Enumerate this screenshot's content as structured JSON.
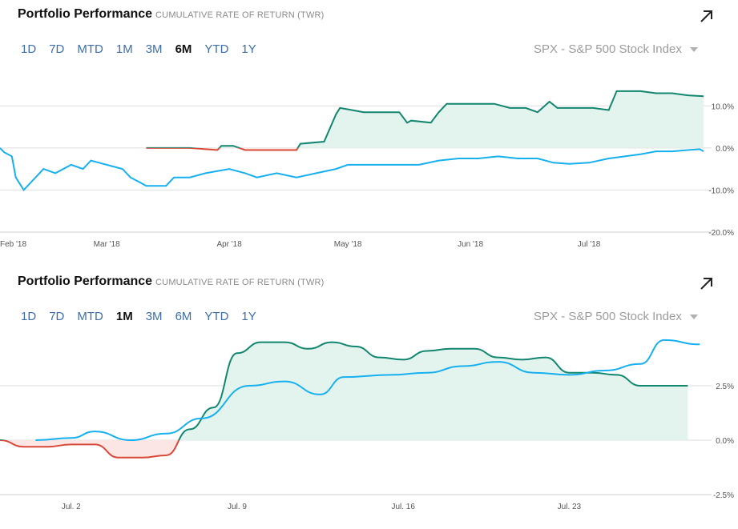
{
  "colors": {
    "portfolio_up": "#12866e",
    "portfolio_down": "#d9493a",
    "benchmark": "#17b0ef",
    "fill_up": "#e3f4ee",
    "fill_down": "#fce6e4",
    "grid": "#dedede",
    "link": "#3d6ea8"
  },
  "panels": [
    {
      "title": "Portfolio Performance",
      "subtitle": "CUMULATIVE RATE OF RETURN (TWR)",
      "expand_icon": "arrow-up-right-icon",
      "ranges": [
        "1D",
        "7D",
        "MTD",
        "1M",
        "3M",
        "6M",
        "YTD",
        "1Y"
      ],
      "active_range": "6M",
      "benchmark": "SPX - S&P 500 Stock Index",
      "chart_data": {
        "type": "line",
        "title": "Portfolio Performance",
        "subtitle": "CUMULATIVE RATE OF RETURN (TWR)",
        "x_ticks": [
          {
            "x": 0,
            "label": "Feb '18"
          },
          {
            "x": 27,
            "label": "Mar '18"
          },
          {
            "x": 58,
            "label": "Apr '18"
          },
          {
            "x": 88,
            "label": "May '18"
          },
          {
            "x": 119,
            "label": "Jun '18"
          },
          {
            "x": 149,
            "label": "Jul '18"
          }
        ],
        "y_ticks": [
          10,
          0,
          -10,
          -20
        ],
        "y_tick_labels": [
          "10.0%",
          "0.0%",
          "-10.0%",
          "-20.0%"
        ],
        "xlim": [
          0,
          180
        ],
        "ylim": [
          -20,
          15
        ],
        "grid": true,
        "series": [
          {
            "values": [
              [
                37,
                0
              ],
              [
                42,
                0
              ],
              [
                48,
                0
              ],
              [
                52,
                -0.3
              ],
              [
                55,
                -0.5
              ],
              [
                56,
                0.5
              ],
              [
                59,
                0.5
              ],
              [
                62,
                -0.5
              ],
              [
                68,
                -0.5
              ],
              [
                75,
                -0.5
              ],
              [
                76,
                1
              ],
              [
                82,
                1.5
              ],
              [
                85,
                8
              ],
              [
                86,
                9.5
              ],
              [
                89,
                9
              ],
              [
                92,
                8.5
              ],
              [
                101,
                8.5
              ],
              [
                103,
                6
              ],
              [
                104,
                6.5
              ],
              [
                109,
                6
              ],
              [
                111,
                8.5
              ],
              [
                113,
                10.5
              ],
              [
                120,
                10.5
              ],
              [
                125,
                10.5
              ],
              [
                129,
                9.5
              ],
              [
                133,
                9.5
              ],
              [
                136,
                8.5
              ],
              [
                139,
                11
              ],
              [
                141,
                9.5
              ],
              [
                150,
                9.5
              ],
              [
                154,
                9
              ],
              [
                156,
                13.5
              ],
              [
                162,
                13.5
              ],
              [
                166,
                13
              ],
              [
                170,
                13
              ],
              [
                174,
                12.5
              ],
              [
                178,
                12.3
              ]
            ],
            "color_above_zero": "#12866e",
            "color_below_zero": "#d9493a",
            "filled": true
          },
          {
            "values": [
              [
                0,
                0
              ],
              [
                1,
                -1
              ],
              [
                3,
                -2
              ],
              [
                4,
                -7
              ],
              [
                6,
                -10
              ],
              [
                9,
                -7
              ],
              [
                11,
                -5
              ],
              [
                14,
                -6
              ],
              [
                18,
                -4
              ],
              [
                21,
                -5
              ],
              [
                23,
                -3
              ],
              [
                27,
                -4
              ],
              [
                31,
                -5
              ],
              [
                33,
                -7
              ],
              [
                35,
                -8
              ],
              [
                37,
                -9
              ],
              [
                39,
                -9
              ],
              [
                42,
                -9
              ],
              [
                44,
                -7
              ],
              [
                48,
                -7
              ],
              [
                52,
                -6
              ],
              [
                58,
                -5
              ],
              [
                62,
                -6
              ],
              [
                65,
                -7
              ],
              [
                70,
                -6
              ],
              [
                75,
                -7
              ],
              [
                80,
                -6
              ],
              [
                85,
                -5
              ],
              [
                88,
                -4
              ],
              [
                92,
                -4
              ],
              [
                97,
                -4
              ],
              [
                101,
                -4
              ],
              [
                106,
                -4
              ],
              [
                111,
                -3
              ],
              [
                116,
                -2.5
              ],
              [
                121,
                -2.5
              ],
              [
                126,
                -2
              ],
              [
                131,
                -2.5
              ],
              [
                136,
                -2.5
              ],
              [
                140,
                -3.5
              ],
              [
                144,
                -3.8
              ],
              [
                149,
                -3.5
              ],
              [
                154,
                -2.5
              ],
              [
                158,
                -2
              ],
              [
                162,
                -1.5
              ],
              [
                166,
                -0.8
              ],
              [
                170,
                -0.8
              ],
              [
                174,
                -0.5
              ],
              [
                177,
                -0.3
              ],
              [
                178,
                -0.8
              ]
            ],
            "color": "#17b0ef",
            "filled": false
          }
        ]
      }
    },
    {
      "title": "Portfolio Performance",
      "subtitle": "CUMULATIVE RATE OF RETURN (TWR)",
      "expand_icon": "arrow-up-right-icon",
      "ranges": [
        "1D",
        "7D",
        "MTD",
        "1M",
        "3M",
        "6M",
        "YTD",
        "1Y"
      ],
      "active_range": "1M",
      "benchmark": "SPX - S&P 500 Stock Index",
      "chart_data": {
        "type": "line",
        "x_ticks": [
          {
            "x": 2,
            "label": "Jul. 2"
          },
          {
            "x": 9,
            "label": "Jul. 9"
          },
          {
            "x": 16,
            "label": "Jul. 16"
          },
          {
            "x": 23,
            "label": "Jul. 23"
          }
        ],
        "y_ticks": [
          2.5,
          0,
          -2.5
        ],
        "y_tick_labels": [
          "2.5%",
          "0.0%",
          "-2.5%"
        ],
        "xlim": [
          -1,
          29
        ],
        "ylim": [
          -2.5,
          5
        ],
        "grid": true,
        "series": [
          {
            "values": [
              [
                -1,
                0
              ],
              [
                0,
                -0.3
              ],
              [
                1,
                -0.3
              ],
              [
                2,
                -0.2
              ],
              [
                3,
                -0.2
              ],
              [
                4,
                -0.8
              ],
              [
                5,
                -0.8
              ],
              [
                6,
                -0.7
              ],
              [
                7,
                0.5
              ],
              [
                8,
                1.5
              ],
              [
                9,
                4
              ],
              [
                10,
                4.5
              ],
              [
                11,
                4.5
              ],
              [
                12,
                4.2
              ],
              [
                13,
                4.5
              ],
              [
                14,
                4.3
              ],
              [
                15,
                3.8
              ],
              [
                16,
                3.7
              ],
              [
                17,
                4.1
              ],
              [
                18,
                4.2
              ],
              [
                19,
                4.2
              ],
              [
                20,
                3.8
              ],
              [
                21,
                3.7
              ],
              [
                22,
                3.8
              ],
              [
                23,
                3.1
              ],
              [
                24,
                3.1
              ],
              [
                25,
                3.0
              ],
              [
                26,
                2.5
              ],
              [
                27,
                2.5
              ],
              [
                28,
                2.5
              ]
            ],
            "color_above_zero": "#12866e",
            "color_below_zero": "#d9493a",
            "filled": true
          },
          {
            "values": [
              [
                0.5,
                0
              ],
              [
                2,
                0.1
              ],
              [
                3,
                0.4
              ],
              [
                4.5,
                0
              ],
              [
                6,
                0.3
              ],
              [
                7.5,
                1
              ],
              [
                9.5,
                2.5
              ],
              [
                11,
                2.7
              ],
              [
                12.5,
                2.1
              ],
              [
                13.5,
                2.9
              ],
              [
                15.5,
                3
              ],
              [
                17,
                3.1
              ],
              [
                18.5,
                3.4
              ],
              [
                20,
                3.6
              ],
              [
                21.5,
                3.1
              ],
              [
                23,
                3.0
              ],
              [
                24.5,
                3.2
              ],
              [
                26,
                3.5
              ],
              [
                27,
                4.6
              ],
              [
                28.5,
                4.4
              ]
            ],
            "color": "#17b0ef",
            "filled": false
          }
        ]
      }
    }
  ]
}
